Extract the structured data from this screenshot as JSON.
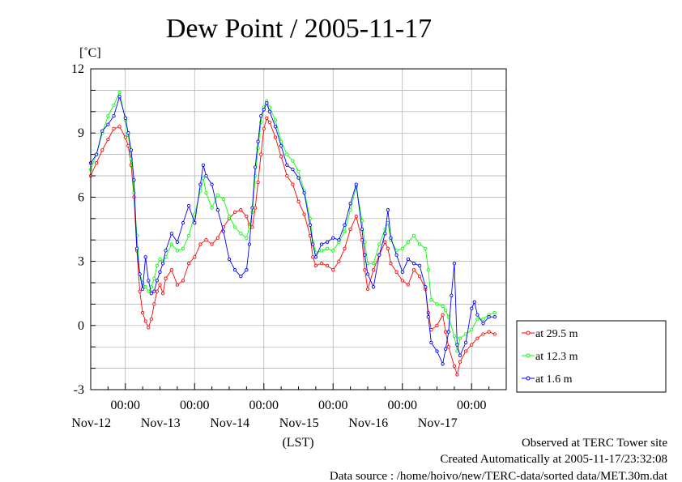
{
  "chart_data": {
    "type": "line",
    "title": "Dew Point / 2005-11-17",
    "unit_label": "[˚C]",
    "xlabel": "(LST)",
    "ylim": [
      -3,
      12
    ],
    "y_ticks": [
      "12",
      "9",
      "6",
      "3",
      "0",
      "-3"
    ],
    "x_range_hours": [
      -12,
      132
    ],
    "x_ticks": [
      {
        "time": "00:00",
        "date": "Nov-12"
      },
      {
        "time": "00:00",
        "date": "Nov-13"
      },
      {
        "time": "00:00",
        "date": "Nov-14"
      },
      {
        "time": "00:00",
        "date": "Nov-15"
      },
      {
        "time": "00:00",
        "date": "Nov-16"
      },
      {
        "time": "00:00",
        "date": "Nov-17"
      }
    ],
    "grid": true,
    "legend_position": "right",
    "series": [
      {
        "name": "at 29.5 m",
        "color": "#ff0000",
        "points": [
          [
            -12,
            7.0
          ],
          [
            -10,
            7.6
          ],
          [
            -8,
            8.2
          ],
          [
            -6,
            8.7
          ],
          [
            -4,
            9.2
          ],
          [
            -2,
            9.3
          ],
          [
            0,
            8.8
          ],
          [
            1,
            8.4
          ],
          [
            2,
            7.5
          ],
          [
            3,
            6.0
          ],
          [
            4,
            3.5
          ],
          [
            5,
            1.6
          ],
          [
            6,
            0.6
          ],
          [
            7,
            0.2
          ],
          [
            8,
            -0.1
          ],
          [
            9,
            0.3
          ],
          [
            10,
            1.0
          ],
          [
            11,
            1.6
          ],
          [
            12,
            1.9
          ],
          [
            13,
            1.5
          ],
          [
            14,
            2.2
          ],
          [
            16,
            2.6
          ],
          [
            18,
            1.9
          ],
          [
            20,
            2.1
          ],
          [
            22,
            2.9
          ],
          [
            24,
            3.2
          ],
          [
            26,
            3.8
          ],
          [
            28,
            4.0
          ],
          [
            30,
            3.8
          ],
          [
            32,
            4.1
          ],
          [
            34,
            4.6
          ],
          [
            36,
            5.0
          ],
          [
            38,
            5.3
          ],
          [
            40,
            5.4
          ],
          [
            42,
            5.1
          ],
          [
            43,
            4.7
          ],
          [
            44,
            4.6
          ],
          [
            45,
            5.5
          ],
          [
            46,
            6.7
          ],
          [
            47,
            8.0
          ],
          [
            48,
            9.2
          ],
          [
            49,
            9.7
          ],
          [
            50,
            9.5
          ],
          [
            52,
            8.8
          ],
          [
            54,
            7.9
          ],
          [
            56,
            7.0
          ],
          [
            58,
            6.6
          ],
          [
            60,
            5.8
          ],
          [
            62,
            5.2
          ],
          [
            64,
            4.2
          ],
          [
            65,
            3.2
          ],
          [
            66,
            2.8
          ],
          [
            68,
            2.9
          ],
          [
            70,
            2.8
          ],
          [
            72,
            2.6
          ],
          [
            74,
            3.0
          ],
          [
            76,
            3.6
          ],
          [
            78,
            4.5
          ],
          [
            80,
            5.1
          ],
          [
            82,
            4.0
          ],
          [
            83,
            2.6
          ],
          [
            84,
            1.7
          ],
          [
            86,
            2.6
          ],
          [
            88,
            3.3
          ],
          [
            90,
            3.9
          ],
          [
            91,
            3.6
          ],
          [
            92,
            2.9
          ],
          [
            94,
            2.5
          ],
          [
            96,
            2.1
          ],
          [
            98,
            1.9
          ],
          [
            100,
            2.6
          ],
          [
            102,
            2.3
          ],
          [
            104,
            1.7
          ],
          [
            105,
            0.6
          ],
          [
            106,
            -0.2
          ],
          [
            108,
            0.0
          ],
          [
            110,
            0.5
          ],
          [
            111,
            -0.3
          ],
          [
            112,
            -1.0
          ],
          [
            114,
            -1.9
          ],
          [
            115,
            -2.3
          ],
          [
            116,
            -1.7
          ],
          [
            118,
            -1.2
          ],
          [
            120,
            -0.9
          ],
          [
            122,
            -0.6
          ],
          [
            124,
            -0.4
          ],
          [
            126,
            -0.3
          ],
          [
            128,
            -0.4
          ]
        ]
      },
      {
        "name": "at 12.3 m",
        "color": "#00ff00",
        "points": [
          [
            -12,
            7.3
          ],
          [
            -10,
            8.0
          ],
          [
            -8,
            9.0
          ],
          [
            -6,
            9.8
          ],
          [
            -4,
            10.3
          ],
          [
            -2,
            10.9
          ],
          [
            0,
            9.6
          ],
          [
            1,
            8.9
          ],
          [
            2,
            7.8
          ],
          [
            3,
            6.2
          ],
          [
            4,
            4.2
          ],
          [
            5,
            2.4
          ],
          [
            6,
            2.0
          ],
          [
            7,
            1.8
          ],
          [
            8,
            1.6
          ],
          [
            9,
            1.8
          ],
          [
            10,
            2.2
          ],
          [
            11,
            2.8
          ],
          [
            12,
            3.1
          ],
          [
            13,
            3.0
          ],
          [
            14,
            3.2
          ],
          [
            16,
            3.8
          ],
          [
            18,
            3.5
          ],
          [
            20,
            3.6
          ],
          [
            22,
            4.2
          ],
          [
            24,
            5.2
          ],
          [
            26,
            6.3
          ],
          [
            27,
            6.9
          ],
          [
            28,
            6.2
          ],
          [
            30,
            5.5
          ],
          [
            32,
            6.1
          ],
          [
            34,
            5.9
          ],
          [
            36,
            5.1
          ],
          [
            38,
            4.6
          ],
          [
            40,
            4.3
          ],
          [
            42,
            4.1
          ],
          [
            43,
            4.6
          ],
          [
            44,
            5.3
          ],
          [
            45,
            7.0
          ],
          [
            46,
            8.3
          ],
          [
            47,
            9.5
          ],
          [
            48,
            10.2
          ],
          [
            49,
            10.5
          ],
          [
            50,
            10.2
          ],
          [
            52,
            9.6
          ],
          [
            54,
            8.6
          ],
          [
            56,
            8.0
          ],
          [
            58,
            7.7
          ],
          [
            60,
            7.2
          ],
          [
            62,
            6.3
          ],
          [
            64,
            5.0
          ],
          [
            65,
            3.9
          ],
          [
            66,
            3.4
          ],
          [
            68,
            3.5
          ],
          [
            70,
            3.6
          ],
          [
            72,
            3.5
          ],
          [
            74,
            3.9
          ],
          [
            76,
            4.4
          ],
          [
            78,
            5.4
          ],
          [
            80,
            6.5
          ],
          [
            82,
            4.9
          ],
          [
            83,
            3.9
          ],
          [
            84,
            2.9
          ],
          [
            86,
            2.9
          ],
          [
            88,
            3.8
          ],
          [
            90,
            4.5
          ],
          [
            91,
            4.8
          ],
          [
            92,
            4.0
          ],
          [
            94,
            3.5
          ],
          [
            96,
            3.6
          ],
          [
            98,
            3.9
          ],
          [
            100,
            4.2
          ],
          [
            102,
            3.8
          ],
          [
            104,
            3.6
          ],
          [
            105,
            2.6
          ],
          [
            106,
            1.2
          ],
          [
            108,
            1.0
          ],
          [
            110,
            0.9
          ],
          [
            111,
            0.7
          ],
          [
            112,
            0.4
          ],
          [
            114,
            -0.5
          ],
          [
            115,
            -1.2
          ],
          [
            116,
            -0.6
          ],
          [
            118,
            -0.4
          ],
          [
            120,
            -0.2
          ],
          [
            122,
            0.3
          ],
          [
            124,
            0.3
          ],
          [
            126,
            0.5
          ],
          [
            128,
            0.6
          ]
        ]
      },
      {
        "name": "at 1.6 m",
        "color": "#0000ff",
        "points": [
          [
            -12,
            7.6
          ],
          [
            -10,
            8.0
          ],
          [
            -8,
            9.1
          ],
          [
            -6,
            9.4
          ],
          [
            -4,
            9.8
          ],
          [
            -2,
            10.7
          ],
          [
            0,
            9.7
          ],
          [
            1,
            9.0
          ],
          [
            2,
            8.2
          ],
          [
            3,
            6.8
          ],
          [
            4,
            3.6
          ],
          [
            5,
            2.4
          ],
          [
            6,
            1.7
          ],
          [
            7,
            3.2
          ],
          [
            8,
            2.1
          ],
          [
            9,
            1.5
          ],
          [
            10,
            1.6
          ],
          [
            11,
            2.1
          ],
          [
            12,
            2.5
          ],
          [
            13,
            2.9
          ],
          [
            14,
            3.5
          ],
          [
            16,
            4.3
          ],
          [
            18,
            3.9
          ],
          [
            20,
            4.8
          ],
          [
            22,
            5.6
          ],
          [
            24,
            4.8
          ],
          [
            26,
            6.6
          ],
          [
            27,
            7.5
          ],
          [
            28,
            7.0
          ],
          [
            30,
            6.6
          ],
          [
            32,
            5.4
          ],
          [
            34,
            4.4
          ],
          [
            36,
            3.1
          ],
          [
            38,
            2.6
          ],
          [
            40,
            2.3
          ],
          [
            42,
            2.6
          ],
          [
            43,
            3.8
          ],
          [
            44,
            5.5
          ],
          [
            45,
            7.4
          ],
          [
            46,
            8.6
          ],
          [
            47,
            9.8
          ],
          [
            48,
            10.1
          ],
          [
            49,
            10.4
          ],
          [
            50,
            10.0
          ],
          [
            52,
            9.3
          ],
          [
            54,
            8.4
          ],
          [
            56,
            7.5
          ],
          [
            58,
            7.3
          ],
          [
            60,
            6.9
          ],
          [
            62,
            6.2
          ],
          [
            64,
            4.7
          ],
          [
            65,
            3.8
          ],
          [
            66,
            3.2
          ],
          [
            68,
            3.8
          ],
          [
            70,
            3.9
          ],
          [
            72,
            4.1
          ],
          [
            74,
            4.0
          ],
          [
            76,
            4.7
          ],
          [
            78,
            5.7
          ],
          [
            80,
            6.6
          ],
          [
            82,
            4.5
          ],
          [
            83,
            3.3
          ],
          [
            84,
            2.4
          ],
          [
            86,
            1.8
          ],
          [
            88,
            3.3
          ],
          [
            90,
            4.3
          ],
          [
            91,
            5.4
          ],
          [
            92,
            4.1
          ],
          [
            94,
            3.3
          ],
          [
            96,
            2.5
          ],
          [
            98,
            3.1
          ],
          [
            100,
            2.9
          ],
          [
            102,
            2.8
          ],
          [
            104,
            1.8
          ],
          [
            105,
            0.4
          ],
          [
            106,
            -0.8
          ],
          [
            108,
            -1.2
          ],
          [
            110,
            -1.8
          ],
          [
            111,
            -1.1
          ],
          [
            112,
            -0.3
          ],
          [
            113,
            1.4
          ],
          [
            114,
            2.9
          ],
          [
            115,
            -0.9
          ],
          [
            116,
            -1.4
          ],
          [
            118,
            -0.8
          ],
          [
            120,
            0.8
          ],
          [
            121,
            1.1
          ],
          [
            122,
            0.5
          ],
          [
            124,
            0.1
          ],
          [
            126,
            0.4
          ],
          [
            128,
            0.4
          ]
        ]
      }
    ],
    "footer_lines": [
      "Observed at TERC Tower site",
      "Created Automatically at 2005-11-17/23:32:08",
      "Data source : /home/hoivo/new/TERC-data/sorted  data/MET.30m.dat"
    ]
  }
}
